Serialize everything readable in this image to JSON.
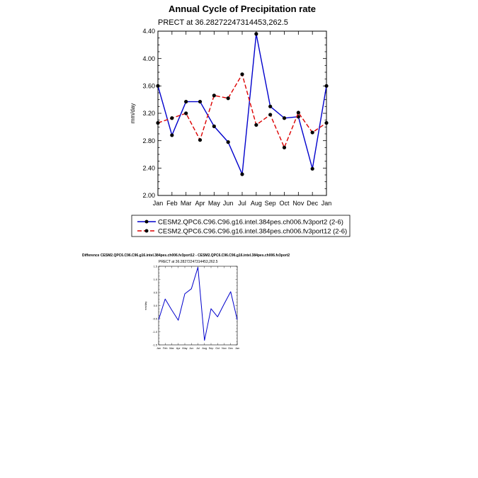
{
  "chart_data": [
    {
      "type": "line",
      "title": "Annual Cycle of Precipitation rate",
      "subtitle": "PRECT at 36.28272247314453,262.5",
      "xlabel": "",
      "ylabel": "mm/day",
      "categories": [
        "Jan",
        "Feb",
        "Mar",
        "Apr",
        "May",
        "Jun",
        "Jul",
        "Aug",
        "Sep",
        "Oct",
        "Nov",
        "Dec",
        "Jan"
      ],
      "ylim": [
        2.0,
        4.4
      ],
      "yticks": [
        "2.00",
        "2.40",
        "2.80",
        "3.20",
        "3.60",
        "4.00",
        "4.40"
      ],
      "legend_position": "bottom",
      "series": [
        {
          "name": "CESM2.QPC6.C96.C96.g16.intel.384pes.ch006.fv3port2 (2-6)",
          "color": "#0000cc",
          "dash": "solid",
          "values": [
            3.6,
            2.88,
            3.37,
            3.37,
            3.01,
            2.78,
            2.31,
            4.36,
            3.3,
            3.13,
            3.15,
            2.39,
            3.6
          ]
        },
        {
          "name": "CESM2.QPC6.C96.C96.g16.intel.384pes.ch006.fv3port12 (2-6)",
          "color": "#dd0000",
          "dash": "dashed",
          "values": [
            3.06,
            3.13,
            3.2,
            2.81,
            3.46,
            3.42,
            3.77,
            3.03,
            3.18,
            2.7,
            3.21,
            2.92,
            3.06
          ]
        }
      ]
    },
    {
      "type": "line",
      "title": "Difference CESM2.QPC6.C96.C96.g16.intel.384pes.ch006.fv3port12 - CESM2.QPC6.C96.C96.g16.intel.384pes.ch006.fv3port2",
      "subtitle": "PRECT at 36.28272247314453,262.5",
      "xlabel": "",
      "ylabel": "mm/day",
      "categories": [
        "Jan",
        "Feb",
        "Mar",
        "Apr",
        "May",
        "Jun",
        "Jul",
        "Aug",
        "Sep",
        "Oct",
        "Nov",
        "Dec",
        "Jan"
      ],
      "ylim": [
        -1.5,
        1.5
      ],
      "yticks": [
        "-1.5",
        "-1.0",
        "-0.5",
        "0.0",
        "0.5",
        "1.0",
        "1.5"
      ],
      "series": [
        {
          "color": "#0000cc",
          "values": [
            -0.54,
            0.25,
            -0.17,
            -0.56,
            0.45,
            0.64,
            1.46,
            -1.33,
            -0.12,
            -0.43,
            0.06,
            0.53,
            -0.54
          ]
        }
      ]
    }
  ]
}
